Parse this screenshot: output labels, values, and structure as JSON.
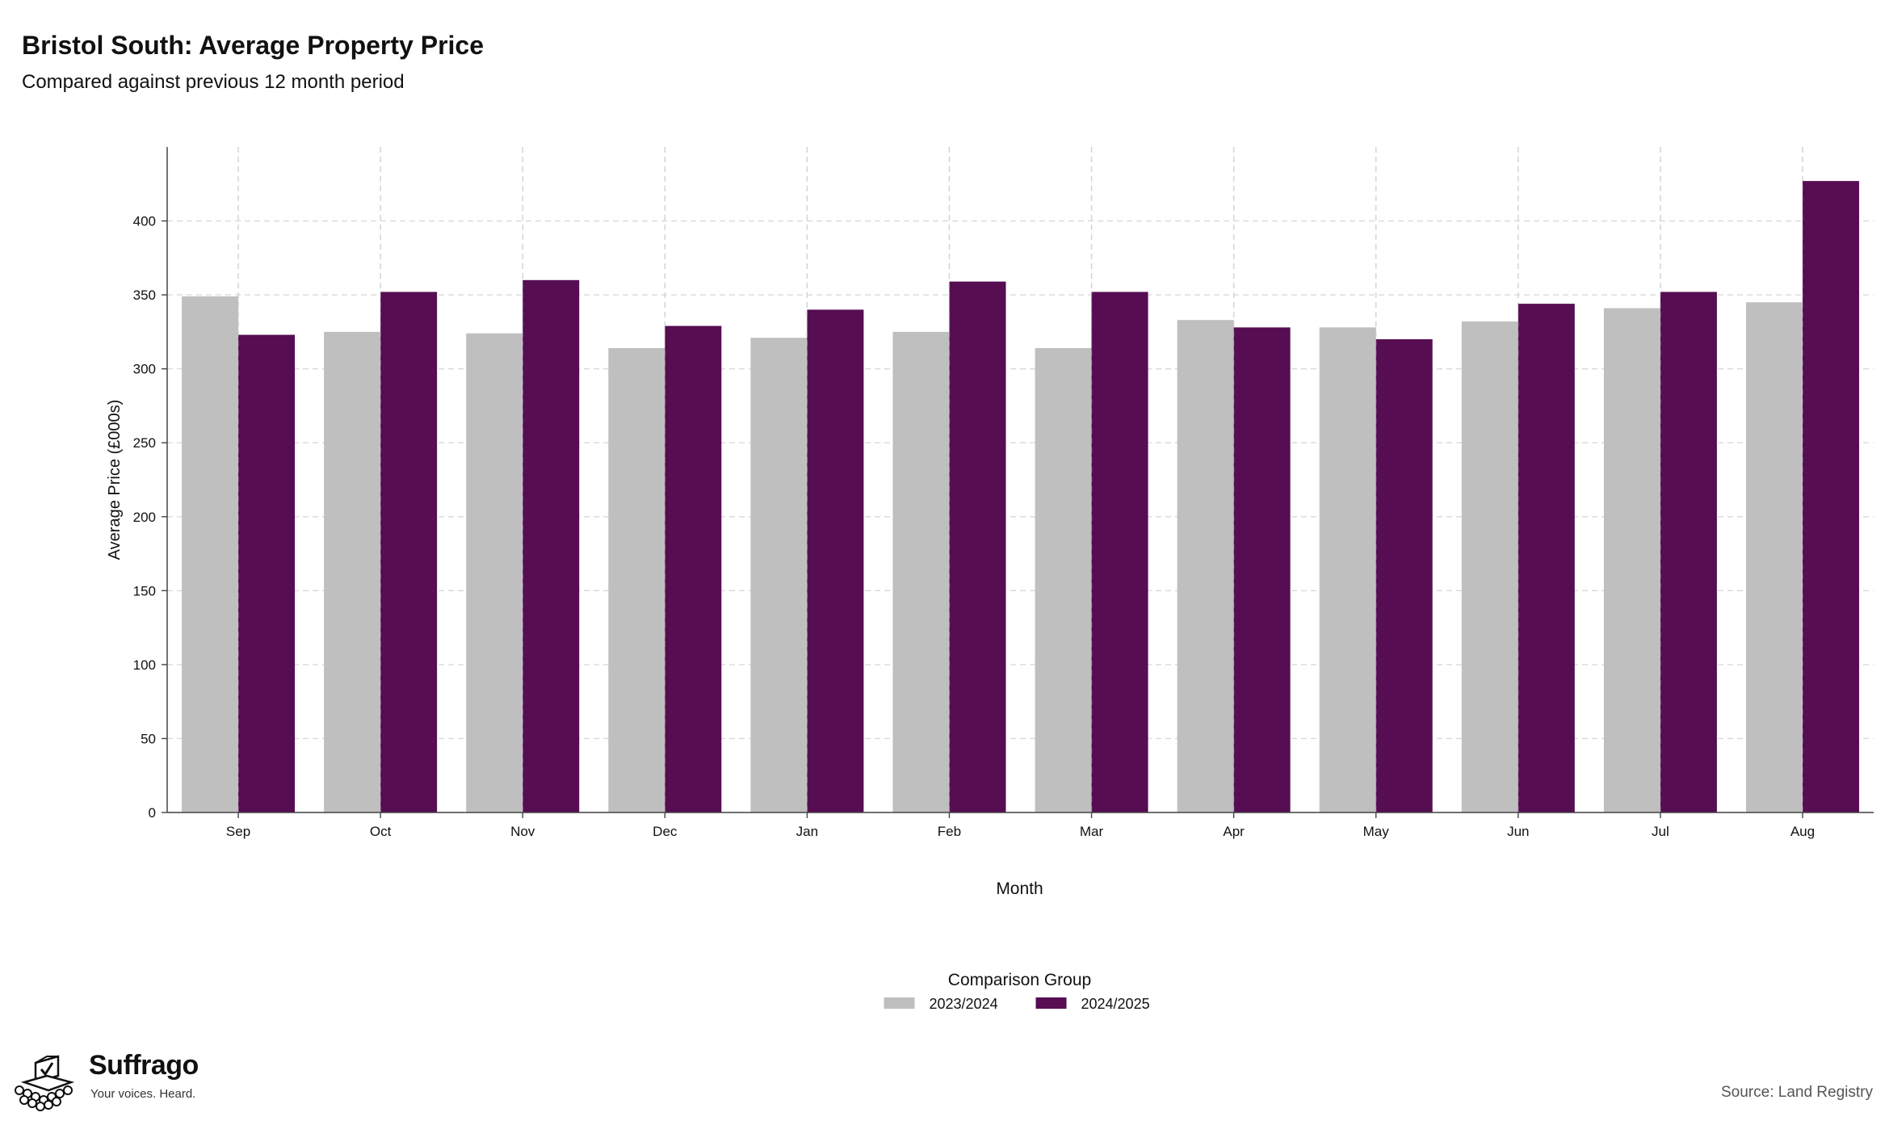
{
  "chart_data": {
    "type": "bar",
    "title": "Bristol South: Average Property Price",
    "subtitle": "Compared against previous 12 month period",
    "xlabel": "Month",
    "ylabel": "Average Price (£000s)",
    "ylim": [
      0,
      450
    ],
    "yticks": [
      0,
      50,
      100,
      150,
      200,
      250,
      300,
      350,
      400
    ],
    "grid": true,
    "legend_position": "bottom",
    "legend_title": "Comparison Group",
    "categories": [
      "Sep",
      "Oct",
      "Nov",
      "Dec",
      "Jan",
      "Feb",
      "Mar",
      "Apr",
      "May",
      "Jun",
      "Jul",
      "Aug"
    ],
    "series": [
      {
        "name": "2023/2024",
        "color": "#bfbfbf",
        "values": [
          349,
          325,
          324,
          314,
          321,
          325,
          314,
          333,
          328,
          332,
          341,
          345
        ]
      },
      {
        "name": "2024/2025",
        "color": "#560d52",
        "values": [
          323,
          352,
          360,
          329,
          340,
          359,
          352,
          328,
          320,
          344,
          352,
          427
        ]
      }
    ],
    "source": "Source: Land Registry"
  },
  "branding": {
    "name": "Suffrago",
    "tagline": "Your voices. Heard.",
    "logo_icon": "ballot-box-crowd-icon"
  }
}
